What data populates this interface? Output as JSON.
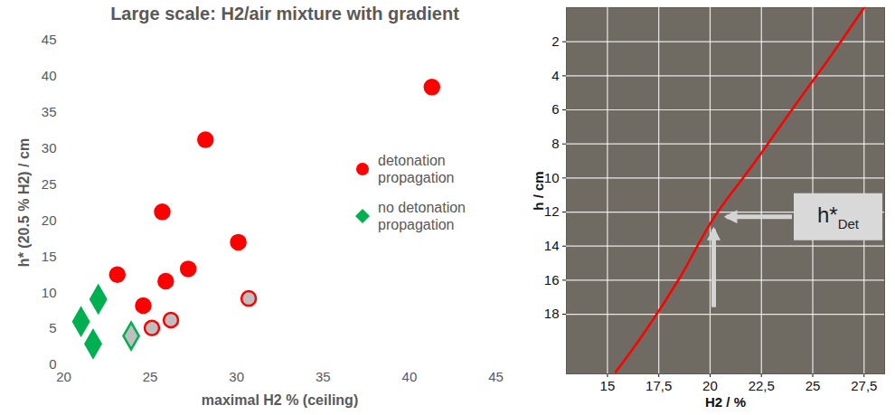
{
  "chart_data": [
    {
      "type": "scatter",
      "title": "Large scale: H2/air mixture with gradient",
      "x_label": "maximal H2 % (ceiling)",
      "y_label": "h* (20.5 % H2) / cm",
      "xlim": [
        20,
        45
      ],
      "xticks": [
        20,
        25,
        30,
        35,
        40,
        45
      ],
      "ylim": [
        0,
        45
      ],
      "yticks": [
        0,
        5,
        10,
        15,
        20,
        25,
        30,
        35,
        40,
        45
      ],
      "grid": false,
      "legend": "right",
      "series": [
        {
          "name": "detonation propagation",
          "color": "#ff0000",
          "marker": "circle",
          "x": [
            41.3,
            28.2,
            25.7,
            30.1,
            23.1,
            27.2,
            25.9,
            24.6,
            30.7,
            26.2,
            25.1
          ],
          "values": [
            38.5,
            31.2,
            21.2,
            17.0,
            12.5,
            13.3,
            11.6,
            8.2,
            9.2,
            6.2,
            5.1
          ],
          "colors": [
            "#ff0000",
            "#ff0000",
            "#ff0000",
            "#ff0000",
            "#ff0000",
            "#ff0000",
            "#ff0000",
            "#ff0000",
            "#bfbfbf",
            "#bfbfbf",
            "#bfbfbf"
          ]
        },
        {
          "name": "no detonation propagation",
          "color": "#00b050",
          "marker": "diamond",
          "x": [
            22.0,
            21.0,
            21.7,
            23.9
          ],
          "values": [
            9.1,
            6.0,
            2.9,
            4.0
          ],
          "colors": [
            "#00b050",
            "#00b050",
            "#00b050",
            "#bfbfbf"
          ]
        }
      ]
    },
    {
      "type": "line",
      "x_label": "H2 / %",
      "y_label": "h / cm",
      "xlim": [
        13,
        28.5
      ],
      "xticks": [
        15,
        {
          "value": 17.5,
          "label": "17,5"
        },
        20,
        {
          "value": 22.5,
          "label": "22,5"
        },
        25,
        {
          "value": 27.5,
          "label": "27,5"
        }
      ],
      "ylim": [
        0,
        21.5
      ],
      "yticks": [
        2,
        4,
        6,
        8,
        10,
        12,
        14,
        16,
        18
      ],
      "grid": true,
      "series": [
        {
          "color": "#ff0000",
          "line_style": "solid",
          "x": [
            15.4,
            16.9,
            18.5,
            20.2,
            22.1,
            24.1,
            25.9,
            27.5
          ],
          "values": [
            21.4,
            18.9,
            15.9,
            12.3,
            9.2,
            5.8,
            2.8,
            0
          ]
        }
      ],
      "annotations": [
        {
          "text": "h*",
          "subscript": "Det",
          "x": 20.2,
          "y": 12.3
        }
      ]
    }
  ]
}
